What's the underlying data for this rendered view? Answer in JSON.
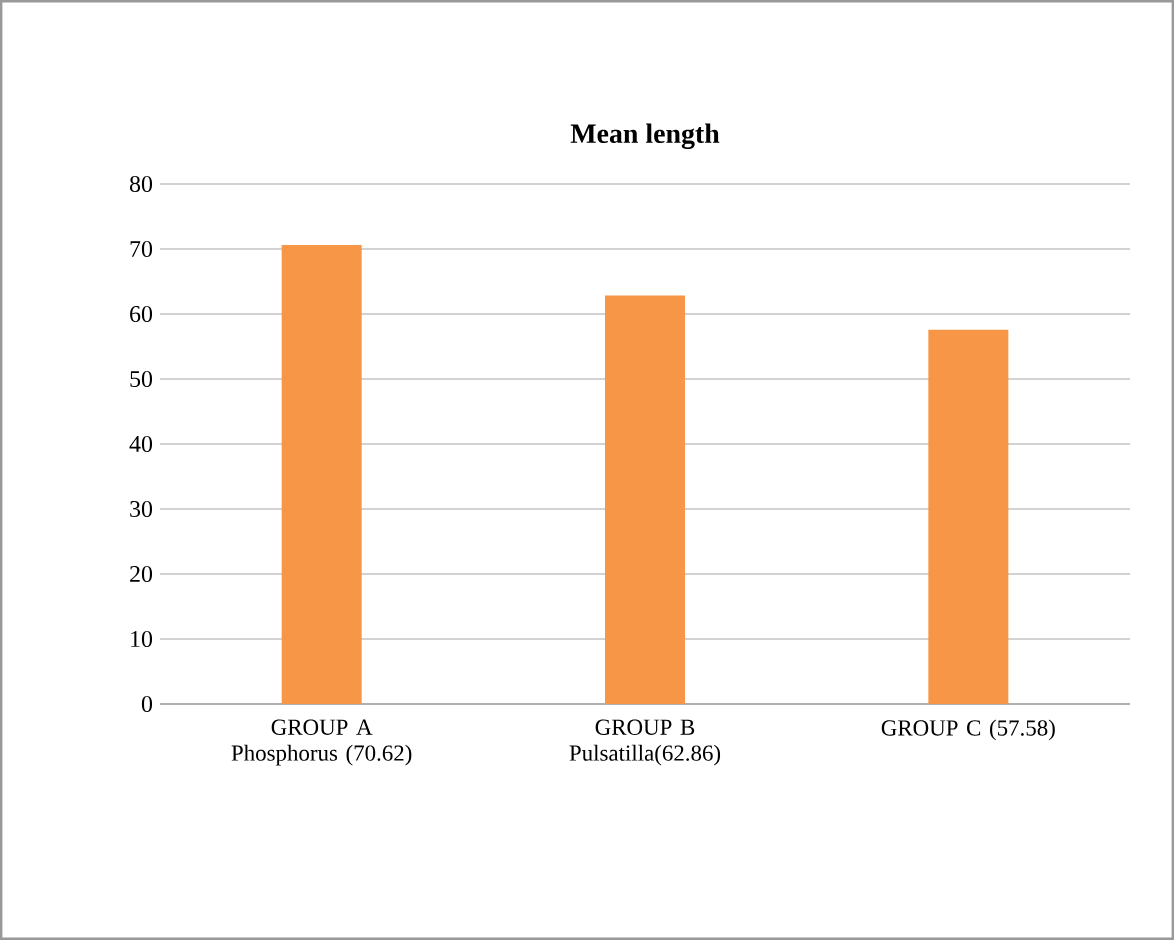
{
  "chart_data": {
    "type": "bar",
    "title": "Mean length",
    "categories": [
      "GROUP A Phosphorus (70.62)",
      "GROUP B Pulsatilla(62.86)",
      "GROUP C (57.58)"
    ],
    "values": [
      70.62,
      62.86,
      57.58
    ],
    "color": "#f79646",
    "ylim": [
      0,
      80
    ],
    "yticks": [
      0,
      10,
      20,
      30,
      40,
      50,
      60,
      70,
      80
    ],
    "grid": "y"
  }
}
